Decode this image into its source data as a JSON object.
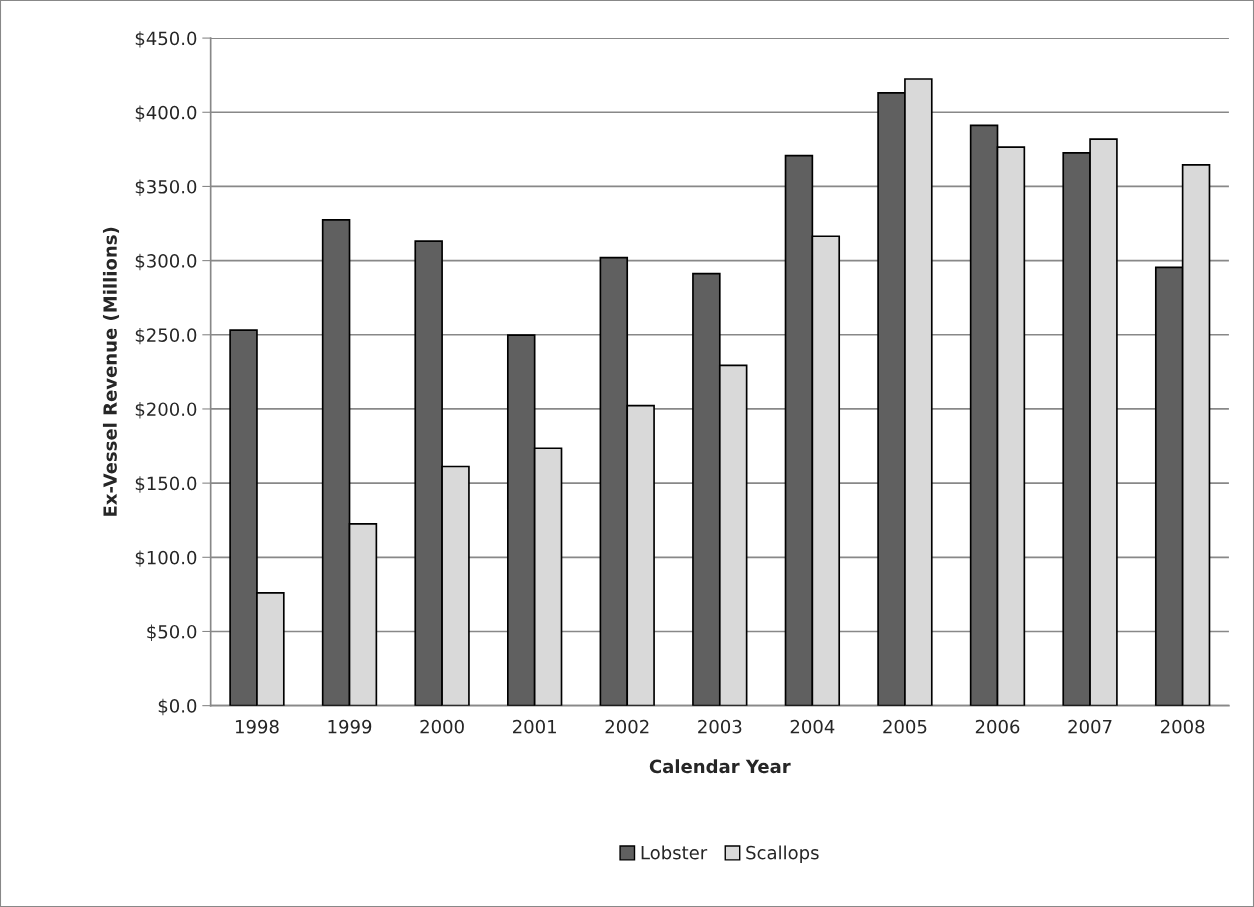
{
  "chart_data": {
    "type": "bar",
    "xlabel": "Calendar Year",
    "ylabel": "Ex-Vessel Revenue (Millions)",
    "categories": [
      "1998",
      "1999",
      "2000",
      "2001",
      "2002",
      "2003",
      "2004",
      "2005",
      "2006",
      "2007",
      "2008"
    ],
    "series": [
      {
        "name": "Lobster",
        "color": "#606060",
        "values": [
          253.1,
          327.5,
          313.1,
          249.8,
          302.0,
          291.2,
          370.8,
          413.1,
          391.2,
          372.6,
          295.4
        ]
      },
      {
        "name": "Scallops",
        "color": "#d9d9d9",
        "values": [
          76.0,
          122.5,
          161.2,
          173.5,
          202.3,
          229.4,
          316.4,
          422.4,
          376.5,
          381.9,
          364.5
        ]
      }
    ],
    "ylim": [
      0,
      450
    ],
    "yticks": [
      {
        "value": 0,
        "label": "$0.0"
      },
      {
        "value": 50,
        "label": "$50.0"
      },
      {
        "value": 100,
        "label": "$100.0"
      },
      {
        "value": 150,
        "label": "$150.0"
      },
      {
        "value": 200,
        "label": "$200.0"
      },
      {
        "value": 250,
        "label": "$250.0"
      },
      {
        "value": 300,
        "label": "$300.0"
      },
      {
        "value": 350,
        "label": "$350.0"
      },
      {
        "value": 400,
        "label": "$400.0"
      },
      {
        "value": 450,
        "label": "$450.0"
      }
    ],
    "grid": "y",
    "legend": "bottom"
  }
}
